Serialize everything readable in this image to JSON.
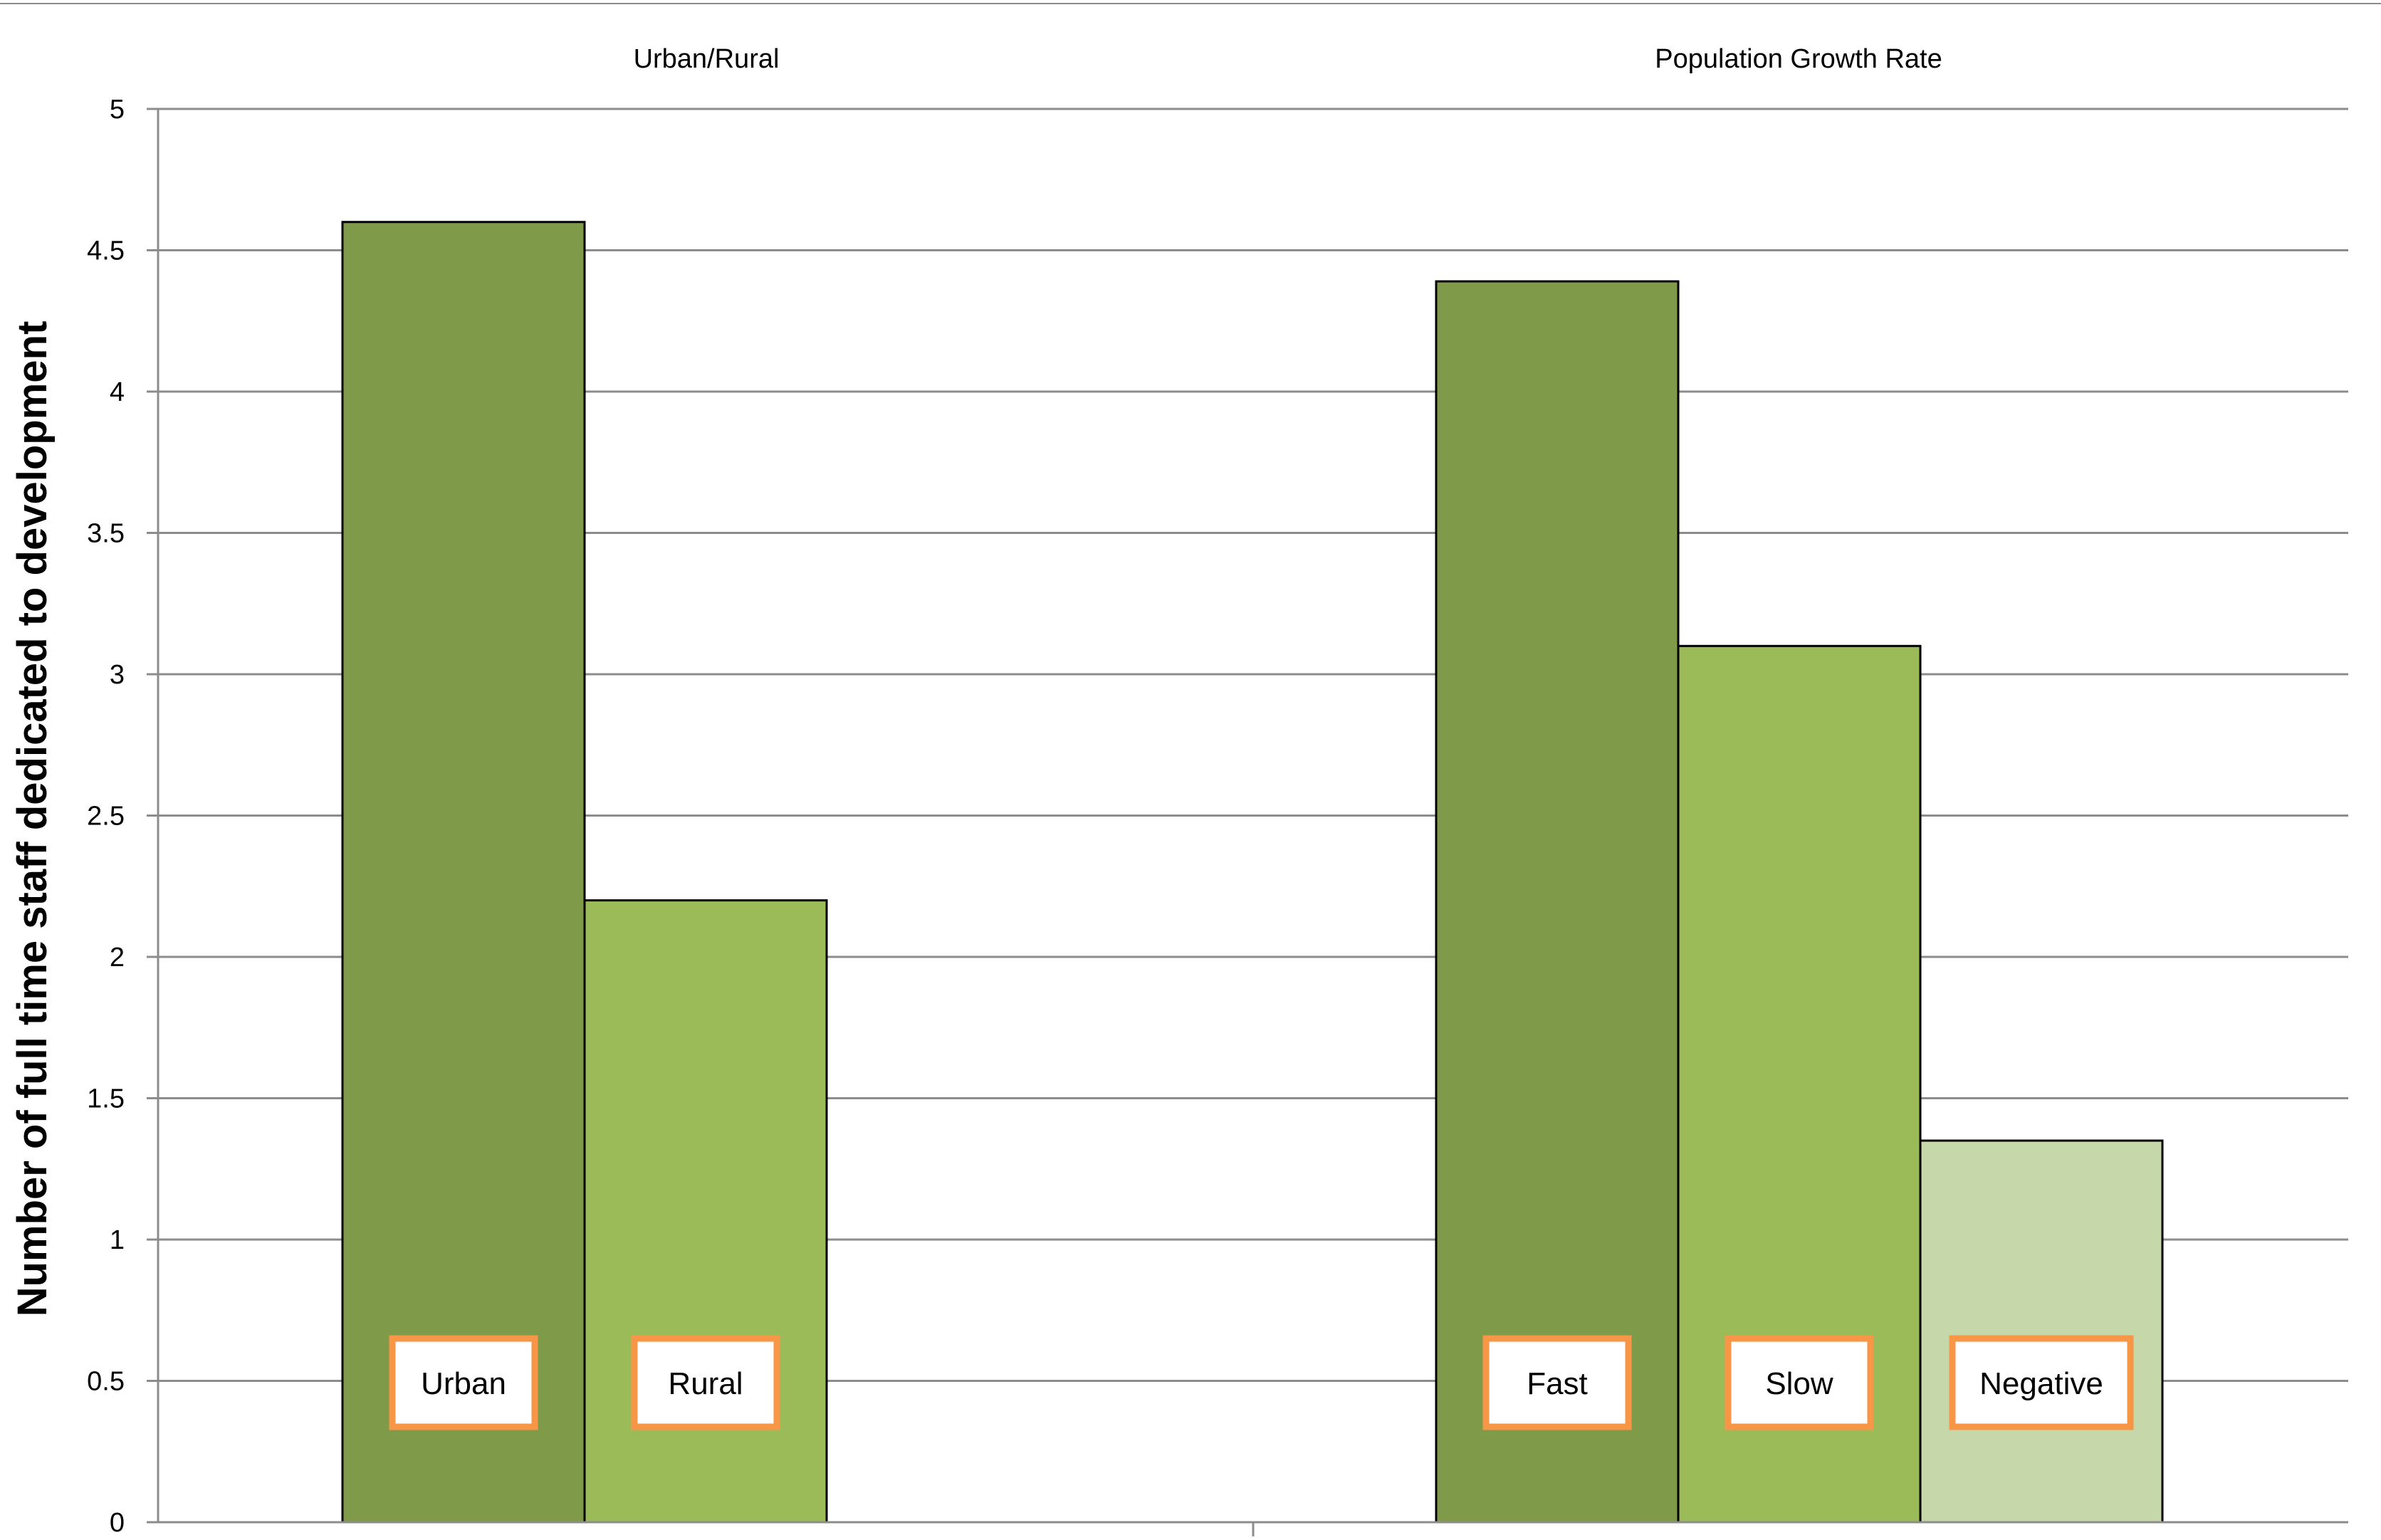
{
  "chart_data": {
    "type": "bar",
    "ylabel": "Number of full time staff dedicated to development",
    "xlabel": "",
    "ylim": [
      0,
      5
    ],
    "y_ticks": [
      "0",
      "0.5",
      "1",
      "1.5",
      "2",
      "2.5",
      "3",
      "3.5",
      "4",
      "4.5",
      "5"
    ],
    "grid": true,
    "groups": [
      {
        "title": "Urban/Rural",
        "bars": [
          {
            "label": "Urban",
            "value": 4.6,
            "color": "#7f9b49"
          },
          {
            "label": "Rural",
            "value": 2.2,
            "color": "#9bbb59"
          }
        ]
      },
      {
        "title": "Population Growth Rate",
        "bars": [
          {
            "label": "Fast",
            "value": 4.39,
            "color": "#7f9b49"
          },
          {
            "label": "Slow",
            "value": 3.1,
            "color": "#9bbb59"
          },
          {
            "label": "Negative",
            "value": 1.35,
            "color": "#c6d7aa"
          }
        ]
      }
    ]
  },
  "colors": {
    "grid": "#8c8c8c",
    "bar_border": "#000000",
    "label_box_border": "#f79646",
    "label_box_fill": "#ffffff"
  }
}
